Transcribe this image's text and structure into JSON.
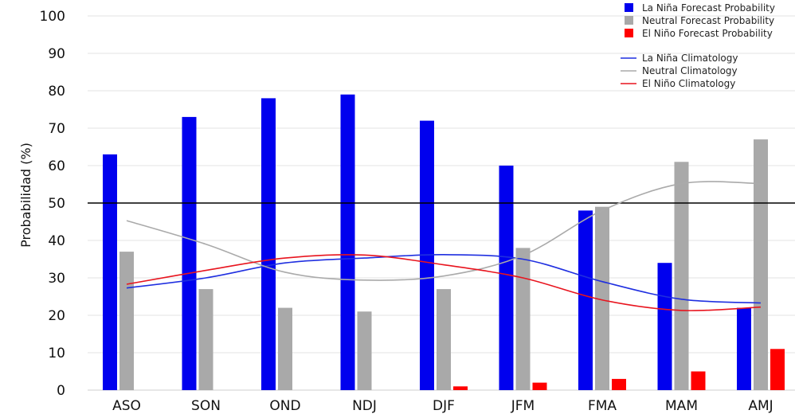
{
  "chart_data": {
    "type": "bar",
    "title": "",
    "xlabel": "",
    "ylabel": "Probabilidad (%)",
    "ylim": [
      0,
      100
    ],
    "yticks": [
      0,
      10,
      20,
      30,
      40,
      50,
      60,
      70,
      80,
      90,
      100
    ],
    "grid": true,
    "reference_line": 50,
    "legend_position": "top-right",
    "categories": [
      "ASO",
      "SON",
      "OND",
      "NDJ",
      "DJF",
      "JFM",
      "FMA",
      "MAM",
      "AMJ"
    ],
    "series": [
      {
        "name": "La Niña Forecast Probability",
        "kind": "bar",
        "color": "#0000ee",
        "values": [
          63,
          73,
          78,
          79,
          72,
          60,
          48,
          34,
          22
        ]
      },
      {
        "name": "Neutral Forecast Probability",
        "kind": "bar",
        "color": "#a9a9a9",
        "values": [
          37,
          27,
          22,
          21,
          27,
          38,
          49,
          61,
          67
        ]
      },
      {
        "name": "El Niño Forecast Probability",
        "kind": "bar",
        "color": "#ff0000",
        "values": [
          0,
          0,
          0,
          0,
          1,
          2,
          3,
          5,
          11
        ]
      }
    ],
    "lines": [
      {
        "name": "La Niña Climatology",
        "color": "#1f2fe0",
        "values": [
          27.3,
          30,
          34,
          35.3,
          36.2,
          35,
          29,
          24.3,
          23.3
        ]
      },
      {
        "name": "Neutral Climatology",
        "color": "#aaaaaa",
        "values": [
          45.3,
          39,
          31.5,
          29.4,
          30.5,
          36,
          48,
          55.2,
          55.2
        ]
      },
      {
        "name": "El Niño Climatology",
        "color": "#e8141e",
        "values": [
          28.3,
          32,
          35.3,
          36.1,
          33.5,
          30,
          24.1,
          21.3,
          22.2
        ]
      }
    ]
  }
}
